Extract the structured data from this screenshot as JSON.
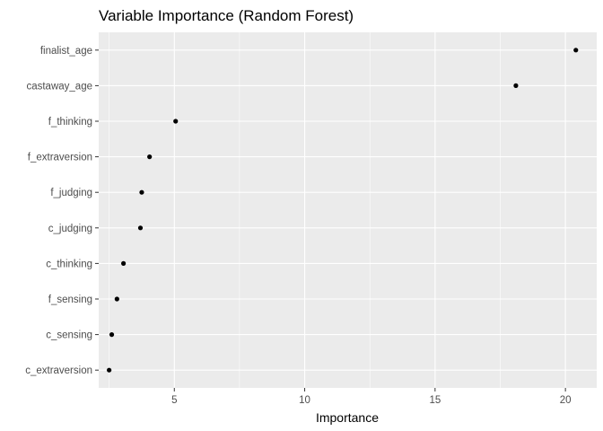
{
  "chart_data": {
    "type": "scatter",
    "title": "Variable Importance (Random Forest)",
    "xlabel": "Importance",
    "ylabel": "",
    "xlim": [
      2.1,
      21.2
    ],
    "xticks": [
      5,
      10,
      15,
      20
    ],
    "grid": true,
    "legend": "none",
    "colors": {
      "panel": "#ebebeb",
      "grid": "#ffffff",
      "point": "#000000"
    },
    "categories": [
      "finalist_age",
      "castaway_age",
      "f_thinking",
      "f_extraversion",
      "f_judging",
      "c_judging",
      "c_thinking",
      "f_sensing",
      "c_sensing",
      "c_extraversion"
    ],
    "values": [
      20.4,
      18.1,
      5.05,
      4.05,
      3.75,
      3.7,
      3.05,
      2.8,
      2.6,
      2.5
    ]
  }
}
